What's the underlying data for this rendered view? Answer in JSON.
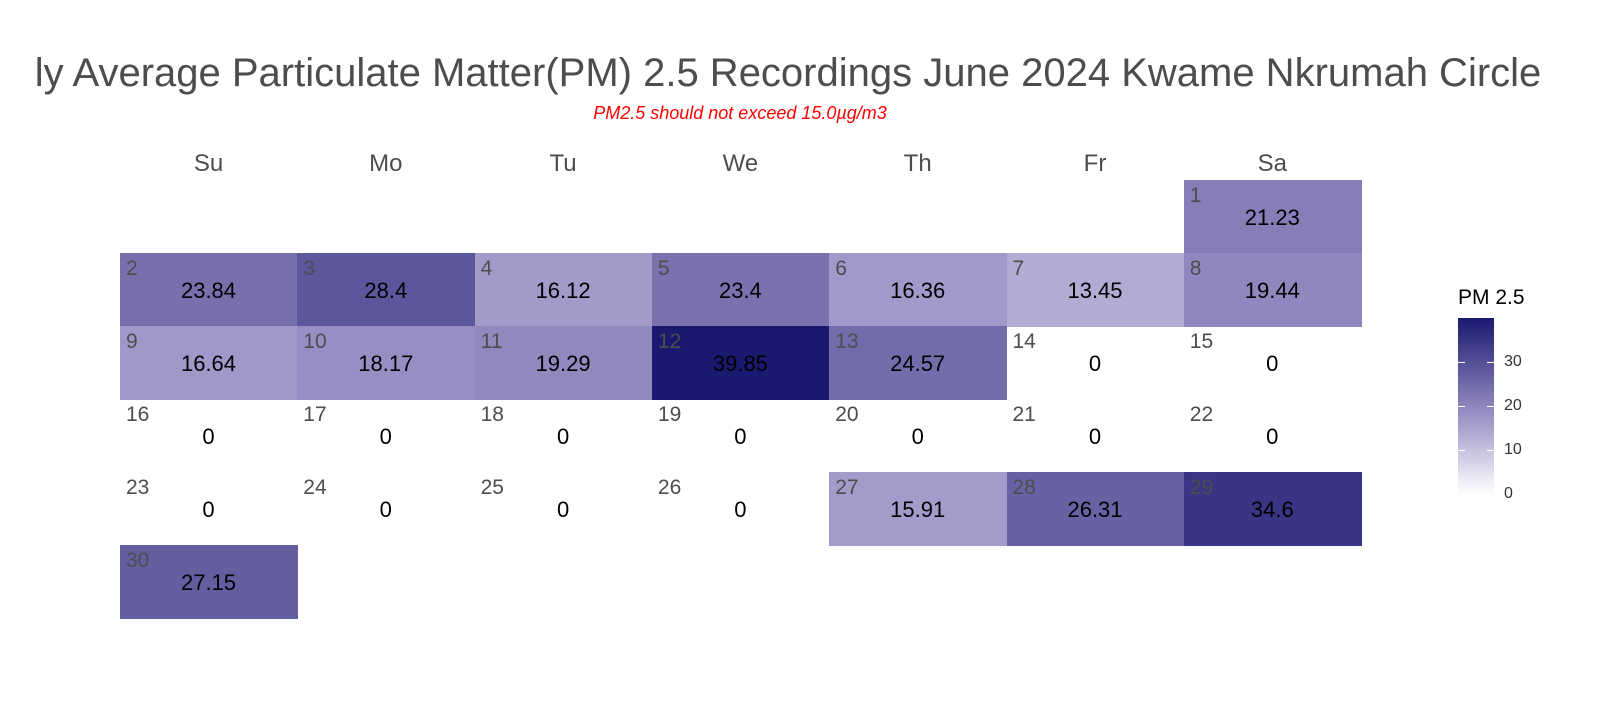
{
  "chart_data": {
    "type": "heatmap",
    "title": "ly Average Particulate Matter(PM) 2.5 Recordings June 2024 Kwame Nkrumah Circle",
    "subtitle": "PM2.5 should not exceed 15.0µg/m3",
    "weekdays": [
      "Su",
      "Mo",
      "Tu",
      "We",
      "Th",
      "Fr",
      "Sa"
    ],
    "first_weekday_index": 6,
    "days": [
      {
        "day": "1",
        "value": "21.23"
      },
      {
        "day": "2",
        "value": "23.84"
      },
      {
        "day": "3",
        "value": "28.4"
      },
      {
        "day": "4",
        "value": "16.12"
      },
      {
        "day": "5",
        "value": "23.4"
      },
      {
        "day": "6",
        "value": "16.36"
      },
      {
        "day": "7",
        "value": "13.45"
      },
      {
        "day": "8",
        "value": "19.44"
      },
      {
        "day": "9",
        "value": "16.64"
      },
      {
        "day": "10",
        "value": "18.17"
      },
      {
        "day": "11",
        "value": "19.29"
      },
      {
        "day": "12",
        "value": "39.85"
      },
      {
        "day": "13",
        "value": "24.57"
      },
      {
        "day": "14",
        "value": "0"
      },
      {
        "day": "15",
        "value": "0"
      },
      {
        "day": "16",
        "value": "0"
      },
      {
        "day": "17",
        "value": "0"
      },
      {
        "day": "18",
        "value": "0"
      },
      {
        "day": "19",
        "value": "0"
      },
      {
        "day": "20",
        "value": "0"
      },
      {
        "day": "21",
        "value": "0"
      },
      {
        "day": "22",
        "value": "0"
      },
      {
        "day": "23",
        "value": "0"
      },
      {
        "day": "24",
        "value": "0"
      },
      {
        "day": "25",
        "value": "0"
      },
      {
        "day": "26",
        "value": "0"
      },
      {
        "day": "27",
        "value": "15.91"
      },
      {
        "day": "28",
        "value": "26.31"
      },
      {
        "day": "29",
        "value": "34.6"
      },
      {
        "day": "30",
        "value": "27.15"
      }
    ],
    "legend": {
      "title": "PM 2.5",
      "ticks": [
        "0",
        "10",
        "20",
        "30"
      ],
      "range": [
        0,
        39.85
      ],
      "color_low": "#ffffff",
      "color_high": "#191970"
    }
  }
}
